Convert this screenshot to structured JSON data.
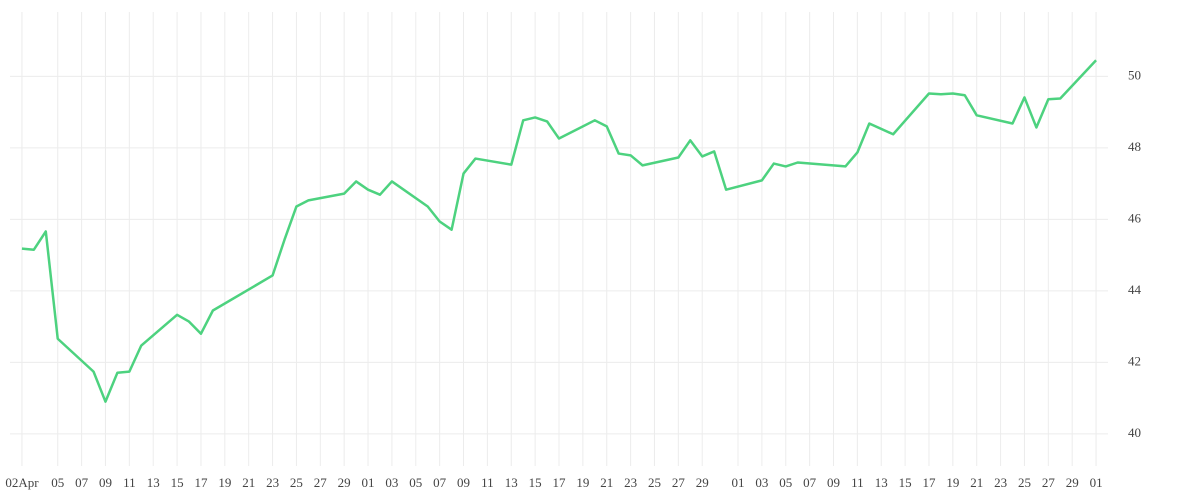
{
  "chart_data": {
    "type": "line",
    "x": [
      "04-02",
      "04-03",
      "04-04",
      "04-05",
      "04-08",
      "04-09",
      "04-10",
      "04-11",
      "04-12",
      "04-15",
      "04-16",
      "04-17",
      "04-18",
      "04-23",
      "04-24",
      "04-25",
      "04-26",
      "04-29",
      "04-30",
      "05-01",
      "05-02",
      "05-03",
      "05-06",
      "05-07",
      "05-08",
      "05-09",
      "05-10",
      "05-13",
      "05-14",
      "05-15",
      "05-16",
      "05-17",
      "05-20",
      "05-21",
      "05-22",
      "05-23",
      "05-24",
      "05-27",
      "05-28",
      "05-29",
      "05-30",
      "05-31",
      "06-03",
      "06-04",
      "06-05",
      "06-06",
      "06-10",
      "06-11",
      "06-12",
      "06-14",
      "06-17",
      "06-18",
      "06-19",
      "06-20",
      "06-21",
      "06-24",
      "06-25",
      "06-26",
      "06-27",
      "06-28",
      "07-01"
    ],
    "series": [
      {
        "color": "#4dd27f",
        "values": [
          45.18,
          45.15,
          45.66,
          42.66,
          41.74,
          40.9,
          41.71,
          41.74,
          42.47,
          43.33,
          43.14,
          42.8,
          43.45,
          44.43,
          45.43,
          46.36,
          46.53,
          46.72,
          47.06,
          46.83,
          46.69,
          47.06,
          46.36,
          45.94,
          45.71,
          47.28,
          47.7,
          47.53,
          48.77,
          48.85,
          48.74,
          48.26,
          48.77,
          48.6,
          47.84,
          47.79,
          47.51,
          47.73,
          48.21,
          47.76,
          47.9,
          46.83,
          47.09,
          47.56,
          47.48,
          47.59,
          47.48,
          47.87,
          48.68,
          48.38,
          49.52,
          49.5,
          49.52,
          49.47,
          48.91,
          48.68,
          49.41,
          48.57,
          49.36,
          49.38,
          50.45
        ]
      }
    ],
    "xlim": [
      "04-01",
      "07-02"
    ],
    "xticks": [
      {
        "value": "04-02",
        "label": "02Apr"
      },
      {
        "value": "04-05",
        "label": "05"
      },
      {
        "value": "04-07",
        "label": "07"
      },
      {
        "value": "04-09",
        "label": "09"
      },
      {
        "value": "04-11",
        "label": "11"
      },
      {
        "value": "04-13",
        "label": "13"
      },
      {
        "value": "04-15",
        "label": "15"
      },
      {
        "value": "04-17",
        "label": "17"
      },
      {
        "value": "04-19",
        "label": "19"
      },
      {
        "value": "04-21",
        "label": "21"
      },
      {
        "value": "04-23",
        "label": "23"
      },
      {
        "value": "04-25",
        "label": "25"
      },
      {
        "value": "04-27",
        "label": "27"
      },
      {
        "value": "04-29",
        "label": "29"
      },
      {
        "value": "05-01",
        "label": "01"
      },
      {
        "value": "05-03",
        "label": "03"
      },
      {
        "value": "05-05",
        "label": "05"
      },
      {
        "value": "05-07",
        "label": "07"
      },
      {
        "value": "05-09",
        "label": "09"
      },
      {
        "value": "05-11",
        "label": "11"
      },
      {
        "value": "05-13",
        "label": "13"
      },
      {
        "value": "05-15",
        "label": "15"
      },
      {
        "value": "05-17",
        "label": "17"
      },
      {
        "value": "05-19",
        "label": "19"
      },
      {
        "value": "05-21",
        "label": "21"
      },
      {
        "value": "05-23",
        "label": "23"
      },
      {
        "value": "05-25",
        "label": "25"
      },
      {
        "value": "05-27",
        "label": "27"
      },
      {
        "value": "05-29",
        "label": "29"
      },
      {
        "value": "06-01",
        "label": "01"
      },
      {
        "value": "06-03",
        "label": "03"
      },
      {
        "value": "06-05",
        "label": "05"
      },
      {
        "value": "06-07",
        "label": "07"
      },
      {
        "value": "06-09",
        "label": "09"
      },
      {
        "value": "06-11",
        "label": "11"
      },
      {
        "value": "06-13",
        "label": "13"
      },
      {
        "value": "06-15",
        "label": "15"
      },
      {
        "value": "06-17",
        "label": "17"
      },
      {
        "value": "06-19",
        "label": "19"
      },
      {
        "value": "06-21",
        "label": "21"
      },
      {
        "value": "06-23",
        "label": "23"
      },
      {
        "value": "06-25",
        "label": "25"
      },
      {
        "value": "06-27",
        "label": "27"
      },
      {
        "value": "06-29",
        "label": "29"
      },
      {
        "value": "07-01",
        "label": "01"
      }
    ],
    "ylim": [
      39.1,
      51.8
    ],
    "yticks": [
      40,
      42,
      44,
      46,
      48,
      50
    ],
    "grid": true
  }
}
